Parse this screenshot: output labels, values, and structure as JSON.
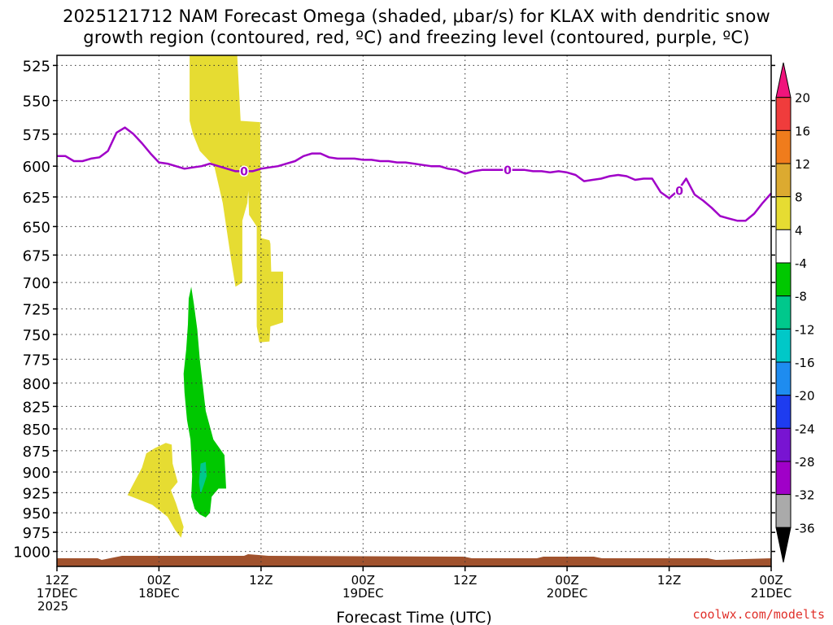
{
  "title_line1": "2025121712 NAM Forecast Omega (shaded, μbar/s) for KLAX with dendritic snow",
  "title_line2": "growth region (contoured, red, ºC) and freezing level (contoured, purple, ºC)",
  "credit": "coolwx.com/modelts",
  "chart_data": {
    "type": "heatmap",
    "xlabel": "Forecast Time (UTC)",
    "x_range_hours": [
      0,
      84
    ],
    "y_range_hpa": [
      518,
      1020
    ],
    "y_scale": "log-pressure",
    "y_ticks": [
      525,
      550,
      575,
      600,
      625,
      650,
      675,
      700,
      725,
      750,
      775,
      800,
      825,
      850,
      875,
      900,
      925,
      950,
      975,
      1000
    ],
    "x_ticks": [
      {
        "hour": 0,
        "line1": "12Z",
        "line2": "17DEC",
        "line3": "2025"
      },
      {
        "hour": 12,
        "line1": "00Z",
        "line2": "18DEC",
        "line3": ""
      },
      {
        "hour": 24,
        "line1": "12Z",
        "line2": "",
        "line3": ""
      },
      {
        "hour": 36,
        "line1": "00Z",
        "line2": "19DEC",
        "line3": ""
      },
      {
        "hour": 48,
        "line1": "12Z",
        "line2": "",
        "line3": ""
      },
      {
        "hour": 60,
        "line1": "00Z",
        "line2": "20DEC",
        "line3": ""
      },
      {
        "hour": 72,
        "line1": "12Z",
        "line2": "",
        "line3": ""
      },
      {
        "hour": 84,
        "line1": "00Z",
        "line2": "21DEC",
        "line3": ""
      }
    ],
    "grid": true,
    "colorbar": {
      "levels": [
        20,
        16,
        12,
        8,
        4,
        -4,
        -8,
        -12,
        -16,
        -20,
        -24,
        -28,
        -32,
        -36
      ],
      "colors": [
        "#f0147c",
        "#f03c3c",
        "#f07c1c",
        "#dcaa30",
        "#e6dc32",
        "#ffffff",
        "#00c800",
        "#00c88c",
        "#00c8c8",
        "#1e8cf0",
        "#1e3cf0",
        "#7814d2",
        "#a000c8",
        "#aaaaaa",
        "#000000"
      ]
    },
    "shaded_regions": [
      {
        "name": "Positive omega 4-8 (upper)",
        "color": "#e6dc32",
        "value_range": [
          4,
          8
        ],
        "points": [
          [
            15.6,
            518
          ],
          [
            21.2,
            518
          ],
          [
            21.6,
            565
          ],
          [
            23.9,
            566
          ],
          [
            24.0,
            660
          ],
          [
            25.0,
            662
          ],
          [
            25.1,
            665
          ],
          [
            25.2,
            690
          ],
          [
            26.6,
            690
          ],
          [
            26.6,
            738
          ],
          [
            25.1,
            742
          ],
          [
            25.0,
            757
          ],
          [
            23.8,
            758
          ],
          [
            23.5,
            742
          ],
          [
            23.5,
            650
          ],
          [
            22.6,
            640
          ],
          [
            22.5,
            620
          ],
          [
            22.4,
            630
          ],
          [
            21.8,
            645
          ],
          [
            21.8,
            700
          ],
          [
            21.0,
            704
          ],
          [
            20.5,
            680
          ],
          [
            19.5,
            630
          ],
          [
            18.5,
            600
          ],
          [
            16.8,
            588
          ],
          [
            16.0,
            575
          ],
          [
            15.6,
            565
          ]
        ]
      },
      {
        "name": "Positive omega 4-8 (lower)",
        "color": "#e6dc32",
        "value_range": [
          4,
          8
        ],
        "points": [
          [
            12.8,
            866
          ],
          [
            13.5,
            868
          ],
          [
            13.6,
            890
          ],
          [
            14.2,
            912
          ],
          [
            13.4,
            922
          ],
          [
            14.0,
            938
          ],
          [
            14.9,
            968
          ],
          [
            14.6,
            982
          ],
          [
            13.9,
            972
          ],
          [
            13.0,
            955
          ],
          [
            11.2,
            940
          ],
          [
            8.3,
            928
          ],
          [
            8.8,
            918
          ],
          [
            10.0,
            895
          ],
          [
            10.5,
            878
          ],
          [
            11.5,
            872
          ]
        ]
      },
      {
        "name": "Negative omega -4 to -8",
        "color": "#00c800",
        "value_range": [
          -8,
          -4
        ],
        "points": [
          [
            15.8,
            704
          ],
          [
            16.1,
            720
          ],
          [
            16.5,
            745
          ],
          [
            16.8,
            775
          ],
          [
            17.5,
            830
          ],
          [
            18.4,
            862
          ],
          [
            19.7,
            880
          ],
          [
            19.9,
            920
          ],
          [
            19.0,
            920
          ],
          [
            18.2,
            930
          ],
          [
            18.0,
            950
          ],
          [
            17.5,
            956
          ],
          [
            16.8,
            952
          ],
          [
            16.2,
            945
          ],
          [
            15.8,
            930
          ],
          [
            15.9,
            905
          ],
          [
            15.8,
            880
          ],
          [
            15.7,
            862
          ],
          [
            15.3,
            840
          ],
          [
            15.0,
            810
          ],
          [
            14.9,
            790
          ],
          [
            15.2,
            765
          ],
          [
            15.4,
            740
          ],
          [
            15.5,
            715
          ]
        ]
      },
      {
        "name": "Negative omega -8 to -12",
        "color": "#00c88c",
        "value_range": [
          -12,
          -8
        ],
        "points": [
          [
            16.9,
            890
          ],
          [
            17.5,
            888
          ],
          [
            17.6,
            905
          ],
          [
            17.3,
            915
          ],
          [
            16.9,
            927
          ],
          [
            16.7,
            912
          ]
        ]
      }
    ],
    "freezing_level": {
      "name": "Freezing level (0 ºC)",
      "color": "#a000c8",
      "label": "0",
      "label_hours": [
        22,
        53,
        73.2
      ],
      "x": [
        0,
        1,
        2,
        3,
        4,
        5,
        6,
        7,
        8,
        9,
        10,
        11,
        12,
        13,
        14,
        15,
        16,
        17,
        18,
        19,
        20,
        21,
        22,
        23,
        24,
        25,
        26,
        27,
        28,
        29,
        30,
        31,
        32,
        33,
        34,
        35,
        36,
        37,
        38,
        39,
        40,
        41,
        42,
        43,
        44,
        45,
        46,
        47,
        48,
        49,
        50,
        51,
        52,
        53,
        54,
        55,
        56,
        57,
        58,
        59,
        60,
        61,
        62,
        63,
        64,
        65,
        66,
        67,
        68,
        69,
        70,
        71,
        72,
        73,
        74,
        75,
        76,
        77,
        78,
        79,
        80,
        81,
        82,
        83,
        84
      ],
      "y": [
        592,
        592,
        596,
        596,
        594,
        593,
        588,
        574,
        570,
        575,
        582,
        590,
        597,
        598,
        600,
        602,
        601,
        600,
        598,
        600,
        602,
        604,
        604,
        604,
        602,
        601,
        600,
        598,
        596,
        592,
        590,
        590,
        593,
        594,
        594,
        594,
        595,
        595,
        596,
        596,
        597,
        597,
        598,
        599,
        600,
        600,
        602,
        603,
        606,
        604,
        603,
        603,
        603,
        603,
        603,
        603,
        604,
        604,
        605,
        604,
        605,
        607,
        612,
        611,
        610,
        608,
        607,
        608,
        611,
        610,
        610,
        621,
        626,
        620,
        610,
        623,
        628,
        634,
        641,
        643,
        645,
        645,
        639,
        630,
        622
      ]
    }
  }
}
